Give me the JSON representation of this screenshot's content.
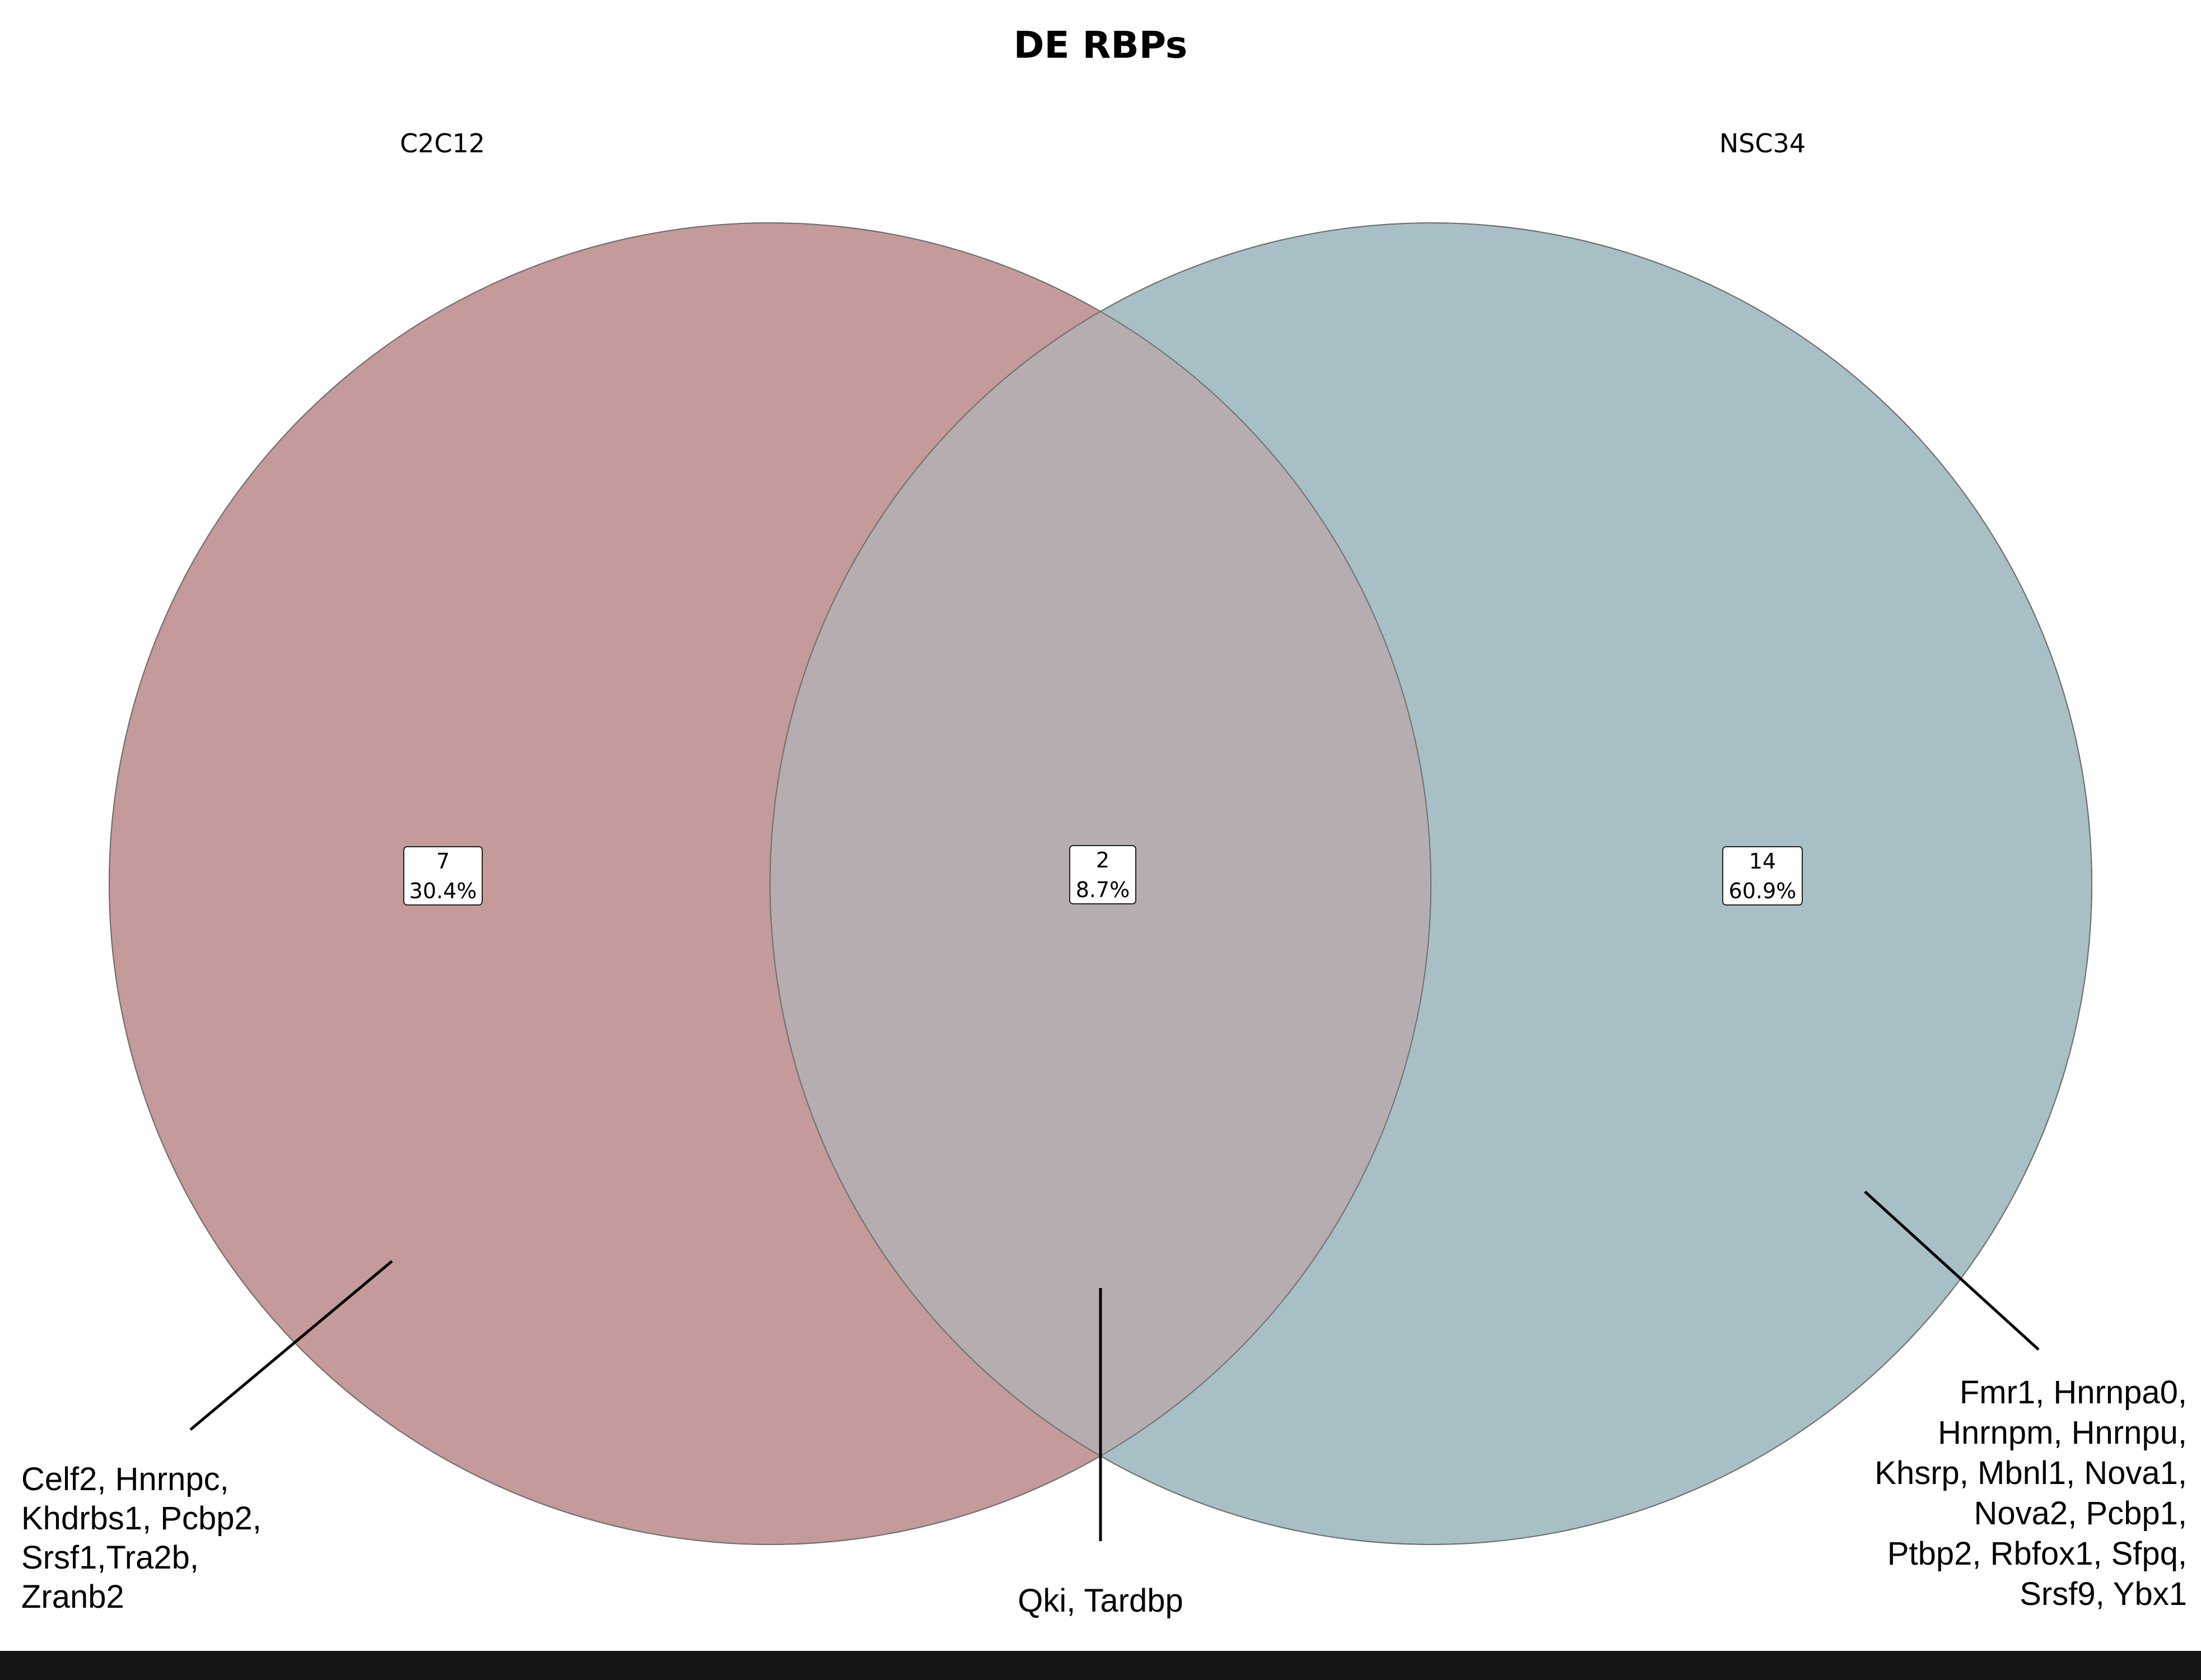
{
  "title": "DE RBPs",
  "sets": [
    {
      "name": "C2C12",
      "color": "#c49a9b"
    },
    {
      "name": "NSC34",
      "color": "#a8c0c5"
    }
  ],
  "overlap_color": "#b6adb1",
  "regions": [
    {
      "id": "c2c12_only",
      "count": "7",
      "percent": "30.4%",
      "genes": [
        "Celf2, Hnrnpc,",
        "Khdrbs1, Pcbp2,",
        "Srsf1,Tra2b,",
        "Zranb2"
      ]
    },
    {
      "id": "shared",
      "count": "2",
      "percent": "8.7%",
      "genes": [
        "Qki, Tardbp"
      ]
    },
    {
      "id": "nsc34_only",
      "count": "14",
      "percent": "60.9%",
      "genes": [
        "Fmr1, Hnrnpa0,",
        "Hnrnpm, Hnrnpu,",
        "Khsrp, Mbnl1, Nova1,",
        "Nova2, Pcbp1,",
        "Ptbp2, Rbfox1, Sfpq,",
        "Srsf9, Ybx1"
      ]
    }
  ]
}
